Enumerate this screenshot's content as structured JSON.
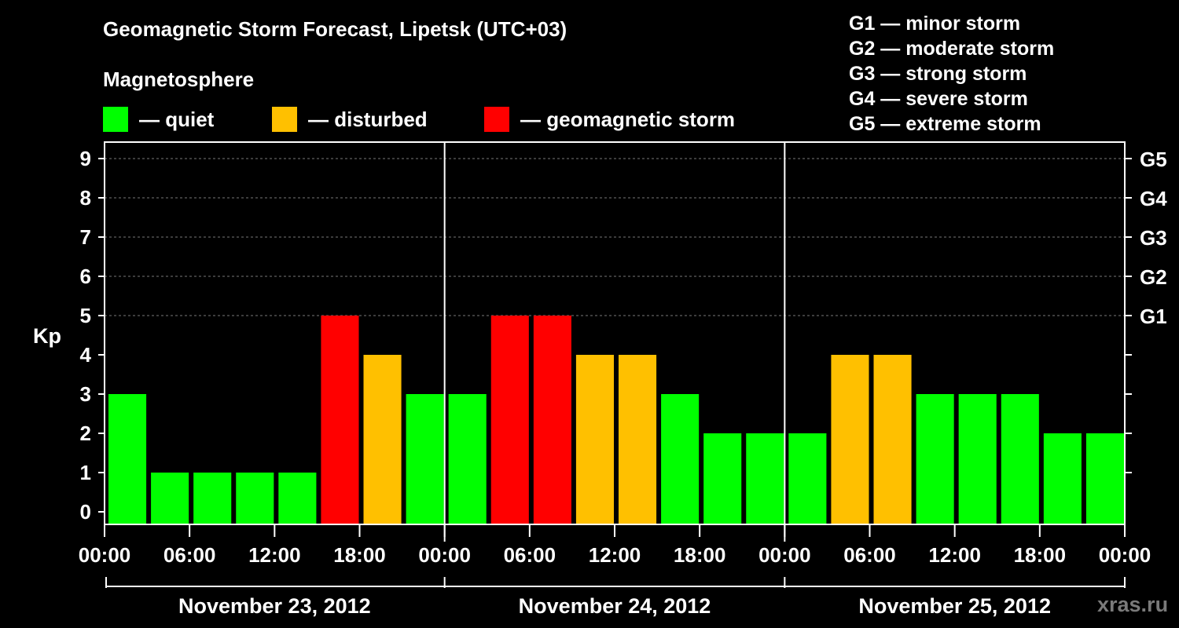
{
  "header": {
    "title": "Geomagnetic Storm Forecast, Lipetsk (UTC+03)",
    "subtitle": "Magnetosphere"
  },
  "legend": [
    {
      "label": "— quiet",
      "color": "#00ff00"
    },
    {
      "label": "— disturbed",
      "color": "#ffc000"
    },
    {
      "label": "— geomagnetic storm",
      "color": "#ff0000"
    }
  ],
  "storm_levels": [
    "G1 — minor storm",
    "G2 — moderate storm",
    "G3 — strong storm",
    "G4 — severe storm",
    "G5 — extreme storm"
  ],
  "watermark": "xras.ru",
  "chart_data": {
    "type": "bar",
    "ylabel": "Kp",
    "ylim": [
      0,
      9
    ],
    "y_ticks": [
      0,
      1,
      2,
      3,
      4,
      5,
      6,
      7,
      8,
      9
    ],
    "right_ticks": [
      {
        "value": 5,
        "label": "G1"
      },
      {
        "value": 6,
        "label": "G2"
      },
      {
        "value": 7,
        "label": "G3"
      },
      {
        "value": 8,
        "label": "G4"
      },
      {
        "value": 9,
        "label": "G5"
      }
    ],
    "x_tick_labels": [
      "00:00",
      "06:00",
      "12:00",
      "18:00",
      "00:00",
      "06:00",
      "12:00",
      "18:00",
      "00:00",
      "06:00",
      "12:00",
      "18:00",
      "00:00"
    ],
    "days": [
      "November 23, 2012",
      "November 24, 2012",
      "November 25, 2012"
    ],
    "values": [
      3,
      1,
      1,
      1,
      1,
      5,
      4,
      3,
      3,
      5,
      5,
      4,
      4,
      3,
      2,
      2,
      2,
      4,
      4,
      3,
      3,
      3,
      2,
      2
    ],
    "color_rule": {
      "quiet": "#00ff00",
      "disturbed": "#ffc000",
      "storm": "#ff0000"
    },
    "gridlines": "dashed at 5–9"
  }
}
